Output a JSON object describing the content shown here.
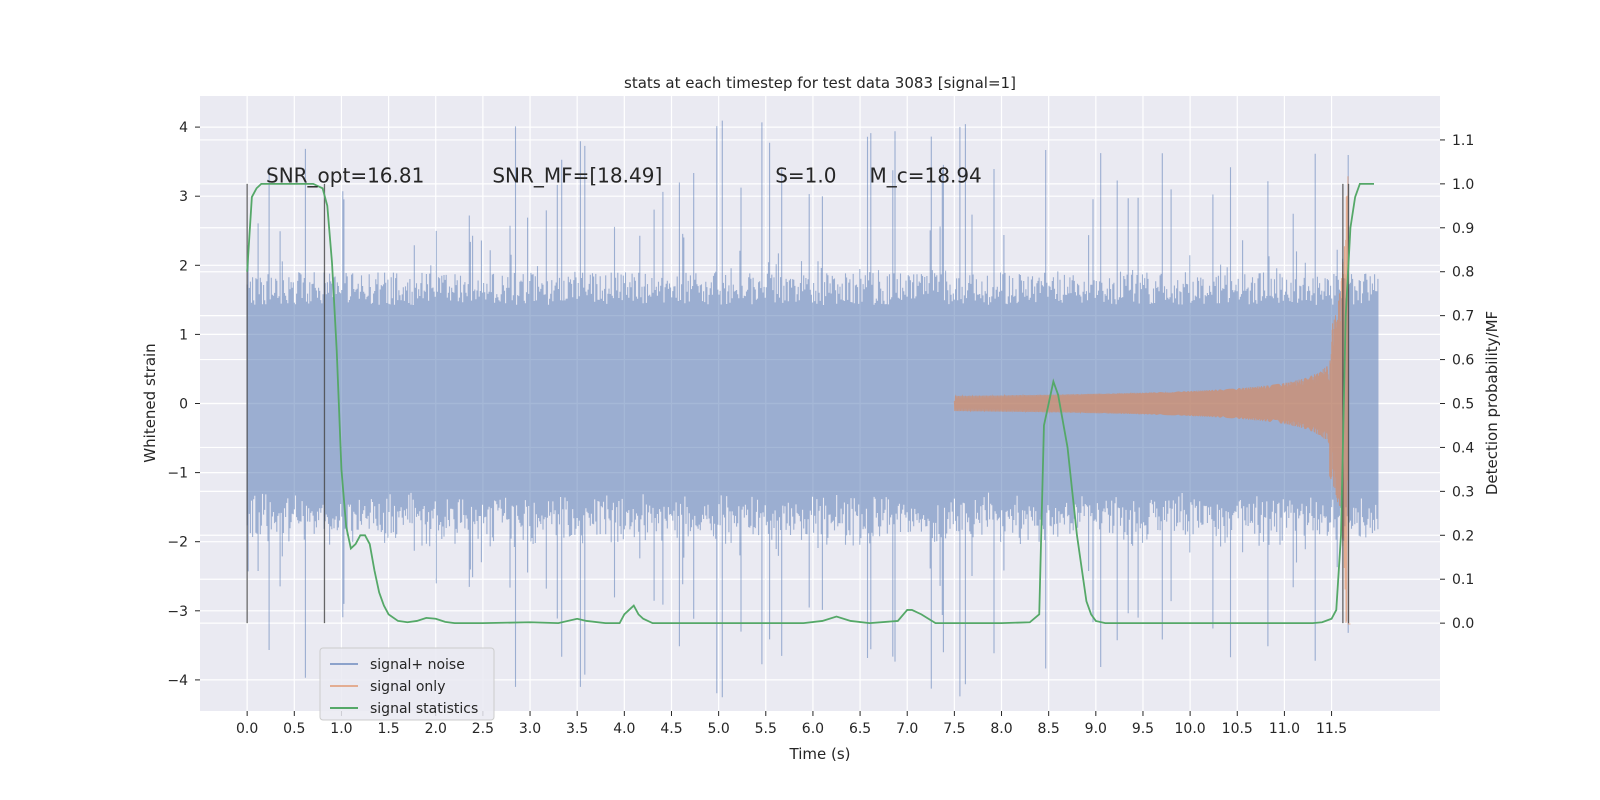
{
  "chart_data": {
    "type": "line",
    "title": "stats at each timestep for test data 3083 [signal=1]",
    "xlabel": "Time (s)",
    "ylabel": "Whitened strain",
    "ylabel_right": "Detection probability/MF",
    "xlim": [
      -0.5,
      12.65
    ],
    "ylim": [
      -4.45,
      4.45
    ],
    "ylim_right": [
      -0.2,
      1.2
    ],
    "xticks": [
      0.0,
      0.5,
      1.0,
      1.5,
      2.0,
      2.5,
      3.0,
      3.5,
      4.0,
      4.5,
      5.0,
      5.5,
      6.0,
      6.5,
      7.0,
      7.5,
      8.0,
      8.5,
      9.0,
      9.5,
      10.0,
      10.5,
      11.0,
      11.5
    ],
    "xtick_labels": [
      "0.0",
      "0.5",
      "1.0",
      "1.5",
      "2.0",
      "2.5",
      "3.0",
      "3.5",
      "4.0",
      "4.5",
      "5.0",
      "5.5",
      "6.0",
      "6.5",
      "7.0",
      "7.5",
      "8.0",
      "8.5",
      "9.0",
      "9.5",
      "10.0",
      "10.5",
      "11.0",
      "11.5"
    ],
    "yticks": [
      4,
      3,
      2,
      1,
      0,
      -1,
      -2,
      -3,
      -4
    ],
    "ytick_labels": [
      "4",
      "3",
      "2",
      "1",
      "0",
      "−1",
      "−2",
      "−3",
      "−4"
    ],
    "yticks_right": [
      1.1,
      1.0,
      0.9,
      0.8,
      0.7,
      0.6,
      0.5,
      0.4,
      0.3,
      0.2,
      0.1,
      0.0
    ],
    "ytick_labels_right": [
      "1.1",
      "1.0",
      "0.9",
      "0.8",
      "0.7",
      "0.6",
      "0.5",
      "0.4",
      "0.3",
      "0.2",
      "0.1",
      "0.0"
    ],
    "grid": true,
    "legend_position": "lower-left",
    "annotations": [
      {
        "text": "SNR_opt=16.81",
        "x": 0.2
      },
      {
        "text": "SNR_MF=[18.49]",
        "x": 2.6
      },
      {
        "text": "S=1.0",
        "x": 5.6
      },
      {
        "text": "M_c=18.94",
        "x": 6.6
      }
    ],
    "annotation_y": 3.3,
    "vertical_markers": [
      0.0,
      0.82,
      11.62,
      11.68
    ],
    "series": [
      {
        "name": "signal+ noise",
        "color": "#4c72b0",
        "kind": "noise",
        "x_range": [
          0.0,
          12.0
        ],
        "envelope_typical": 1.9,
        "envelope_peak": 4.1
      },
      {
        "name": "signal only",
        "color": "#dd8452",
        "kind": "chirp",
        "x_range": [
          7.5,
          11.7
        ],
        "peak_amplitude": 3.3
      },
      {
        "name": "signal statistics",
        "color": "#55a868",
        "axis": "right",
        "x": [
          0.0,
          0.05,
          0.1,
          0.15,
          0.2,
          0.3,
          0.4,
          0.5,
          0.6,
          0.7,
          0.75,
          0.8,
          0.85,
          0.9,
          0.95,
          1.0,
          1.05,
          1.1,
          1.15,
          1.2,
          1.25,
          1.3,
          1.35,
          1.4,
          1.45,
          1.5,
          1.6,
          1.7,
          1.8,
          1.9,
          2.0,
          2.1,
          2.2,
          2.5,
          3.0,
          3.3,
          3.5,
          3.6,
          3.8,
          3.95,
          4.0,
          4.05,
          4.1,
          4.15,
          4.2,
          4.3,
          4.5,
          5.0,
          5.5,
          5.9,
          6.1,
          6.25,
          6.4,
          6.6,
          6.9,
          7.0,
          7.05,
          7.15,
          7.3,
          7.6,
          8.0,
          8.3,
          8.4,
          8.45,
          8.5,
          8.55,
          8.6,
          8.7,
          8.8,
          8.9,
          8.95,
          9.0,
          9.1,
          9.3,
          10.0,
          10.5,
          11.0,
          11.3,
          11.4,
          11.5,
          11.55,
          11.6,
          11.65,
          11.7,
          11.75,
          11.8,
          11.9,
          11.95
        ],
        "y": [
          0.8,
          0.97,
          0.99,
          1.0,
          1.0,
          1.0,
          1.0,
          1.0,
          1.0,
          1.0,
          0.995,
          0.99,
          0.95,
          0.82,
          0.62,
          0.35,
          0.22,
          0.17,
          0.18,
          0.2,
          0.2,
          0.18,
          0.12,
          0.07,
          0.04,
          0.02,
          0.005,
          0.002,
          0.005,
          0.012,
          0.01,
          0.003,
          0.0,
          0.0,
          0.002,
          0.0,
          0.01,
          0.005,
          0.0,
          0.0,
          0.02,
          0.03,
          0.04,
          0.02,
          0.01,
          0.0,
          0.0,
          0.0,
          0.0,
          0.0,
          0.005,
          0.015,
          0.005,
          0.0,
          0.005,
          0.03,
          0.03,
          0.02,
          0.0,
          0.0,
          0.0,
          0.002,
          0.02,
          0.45,
          0.5,
          0.55,
          0.52,
          0.4,
          0.2,
          0.05,
          0.02,
          0.005,
          0.0,
          0.0,
          0.0,
          0.0,
          0.0,
          0.0,
          0.002,
          0.01,
          0.03,
          0.2,
          0.7,
          0.9,
          0.97,
          1.0,
          1.0,
          1.0
        ]
      }
    ]
  }
}
